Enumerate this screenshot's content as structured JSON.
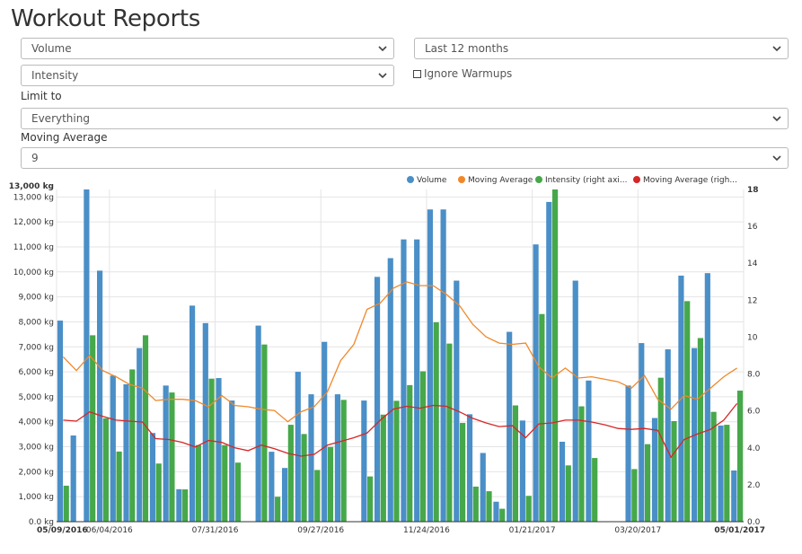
{
  "page": {
    "title": "Workout Reports"
  },
  "controls": {
    "metric_primary": "Volume",
    "time_range": "Last 12 months",
    "metric_secondary": "Intensity",
    "ignore_warmups_label": "Ignore Warmups",
    "ignore_warmups_checked": false,
    "limit_to_label": "Limit to",
    "limit_to_value": "Everything",
    "moving_average_label": "Moving Average",
    "moving_average_value": "9"
  },
  "colors": {
    "volume": "#4a8fc7",
    "volume_ma": "#f0882a",
    "intensity": "#46a84a",
    "intensity_ma": "#d62626"
  },
  "chart_data": {
    "type": "bar",
    "legend": [
      "Volume",
      "Moving Average",
      "Intensity (right axi...",
      "Moving Average (righ..."
    ],
    "legend_position": "top-right",
    "y_left_ticks": [
      "0.0 kg",
      "1,000 kg",
      "2,000 kg",
      "3,000 kg",
      "4,000 kg",
      "5,000 kg",
      "6,000 kg",
      "7,000 kg",
      "8,000 kg",
      "9,000 kg",
      "10,000 kg",
      "11,000 kg",
      "12,000 kg",
      "13,000 kg"
    ],
    "y_left_range": [
      0,
      13300
    ],
    "y_right_ticks": [
      "0.0",
      "2.0",
      "4.0",
      "6.0",
      "8.0",
      "10",
      "12",
      "14",
      "16",
      "18"
    ],
    "y_right_range": [
      0,
      18
    ],
    "x_labels": [
      "05/09/2016",
      "06/04/2016",
      "07/31/2016",
      "09/27/2016",
      "11/24/2016",
      "01/21/2017",
      "03/20/2017",
      "05/01/2017"
    ],
    "x_label_positions": [
      0,
      4,
      12,
      20,
      28,
      36,
      44,
      51
    ],
    "series": [
      {
        "name": "Volume",
        "axis": "left",
        "values": [
          8050,
          3450,
          13300,
          10050,
          5850,
          5500,
          6950,
          3550,
          5450,
          1300,
          8650,
          7950,
          5750,
          4850,
          0,
          7850,
          2800,
          2150,
          6000,
          5100,
          7200,
          5100,
          0,
          4850,
          9800,
          10550,
          11300,
          11300,
          12500,
          12500,
          9650,
          4300,
          2750,
          800,
          7600,
          4050,
          11100,
          12800,
          3200,
          9650,
          5650,
          0,
          0,
          5450,
          7150,
          4150,
          6900,
          9850,
          6950,
          9950,
          3850,
          2050
        ]
      },
      {
        "name": "Intensity (right axi...",
        "axis": "right",
        "values": [
          1.95,
          0,
          10.1,
          5.6,
          3.8,
          8.25,
          10.1,
          3.15,
          7.0,
          1.75,
          4.15,
          7.75,
          4.15,
          3.2,
          0,
          9.6,
          1.35,
          5.25,
          4.75,
          2.8,
          4.05,
          6.6,
          0,
          2.45,
          5.8,
          6.55,
          7.4,
          8.15,
          10.8,
          9.65,
          5.35,
          1.9,
          1.65,
          0.7,
          6.3,
          1.4,
          11.25,
          18.0,
          3.05,
          6.25,
          3.45,
          0,
          0,
          2.85,
          4.2,
          7.8,
          5.45,
          11.95,
          9.95,
          5.95,
          5.25,
          7.1
        ]
      },
      {
        "name": "Moving Average",
        "axis": "left",
        "values": [
          6600,
          6050,
          6650,
          6050,
          5800,
          5500,
          5350,
          4850,
          4900,
          4900,
          4850,
          4600,
          5050,
          4650,
          4600,
          4500,
          4450,
          4000,
          4400,
          4600,
          5200,
          6450,
          7100,
          8500,
          8750,
          9350,
          9600,
          9450,
          9450,
          9100,
          8650,
          7900,
          7400,
          7150,
          7100,
          7150,
          6200,
          5750,
          6150,
          5750,
          5800,
          5700,
          5600,
          5350,
          5850,
          4900,
          4500,
          5050,
          4900,
          5350,
          5800,
          6150
        ]
      },
      {
        "name": "Moving Average (righ...",
        "axis": "right",
        "values": [
          5.5,
          5.45,
          5.95,
          5.7,
          5.5,
          5.45,
          5.4,
          4.5,
          4.45,
          4.3,
          4.05,
          4.4,
          4.3,
          4.0,
          3.85,
          4.15,
          3.95,
          3.7,
          3.55,
          3.65,
          4.15,
          4.35,
          4.55,
          4.8,
          5.5,
          6.1,
          6.25,
          6.15,
          6.3,
          6.25,
          5.95,
          5.6,
          5.35,
          5.15,
          5.2,
          4.55,
          5.3,
          5.35,
          5.5,
          5.5,
          5.4,
          5.25,
          5.05,
          5.0,
          5.05,
          4.95,
          3.5,
          4.45,
          4.75,
          5.0,
          5.5,
          6.4
        ]
      }
    ]
  }
}
